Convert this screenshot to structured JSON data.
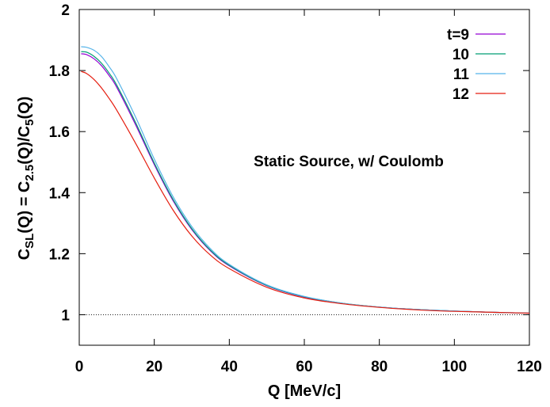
{
  "chart_data": {
    "type": "line",
    "xlabel": "Q [MeV/c]",
    "ylabel": {
      "parts": [
        {
          "text": "C",
          "sub": false
        },
        {
          "text": "SL",
          "sub": true
        },
        {
          "text": "(Q) = C",
          "sub": false
        },
        {
          "text": "2.5",
          "sub": true
        },
        {
          "text": "(Q)/C",
          "sub": false
        },
        {
          "text": "5",
          "sub": true
        },
        {
          "text": "(Q)",
          "sub": false
        }
      ]
    },
    "xlim": [
      0,
      120
    ],
    "ylim": [
      0.9,
      2.0
    ],
    "xticks": [
      0,
      20,
      40,
      60,
      80,
      100,
      120
    ],
    "xtick_labels": [
      "0",
      "20",
      "40",
      "60",
      "80",
      "100",
      "120"
    ],
    "yticks": [
      1,
      1.2,
      1.4,
      1.6,
      1.8,
      2
    ],
    "ytick_labels": [
      "1",
      "1.2",
      "1.4",
      "1.6",
      "1.8",
      "2"
    ],
    "annotation": "Static Source, w/ Coulomb",
    "legend_position": "top-right",
    "reference_line": {
      "y": 1,
      "style": "dotted"
    },
    "series": [
      {
        "name": "t=9",
        "color": "#9400d3",
        "x": [
          0.5,
          2,
          4,
          6,
          8,
          10,
          15,
          20,
          25,
          30,
          35,
          40,
          50,
          60,
          70,
          80,
          90,
          100,
          110,
          120
        ],
        "y": [
          1.855,
          1.852,
          1.838,
          1.815,
          1.783,
          1.745,
          1.623,
          1.492,
          1.374,
          1.279,
          1.209,
          1.16,
          1.095,
          1.058,
          1.037,
          1.025,
          1.017,
          1.012,
          1.008,
          1.005
        ]
      },
      {
        "name": "10",
        "color": "#009e73",
        "x": [
          0.5,
          2,
          4,
          6,
          8,
          10,
          15,
          20,
          25,
          30,
          35,
          40,
          50,
          60,
          70,
          80,
          90,
          100,
          110,
          120
        ],
        "y": [
          1.862,
          1.86,
          1.846,
          1.823,
          1.791,
          1.752,
          1.63,
          1.497,
          1.378,
          1.282,
          1.211,
          1.162,
          1.096,
          1.059,
          1.038,
          1.025,
          1.017,
          1.012,
          1.008,
          1.005
        ]
      },
      {
        "name": "11",
        "color": "#56b4e9",
        "x": [
          0.5,
          2,
          4,
          6,
          8,
          10,
          15,
          20,
          25,
          30,
          35,
          40,
          50,
          60,
          70,
          80,
          90,
          100,
          110,
          120
        ],
        "y": [
          1.878,
          1.876,
          1.866,
          1.845,
          1.812,
          1.773,
          1.648,
          1.51,
          1.387,
          1.289,
          1.216,
          1.165,
          1.098,
          1.06,
          1.038,
          1.025,
          1.017,
          1.012,
          1.008,
          1.005
        ]
      },
      {
        "name": "12",
        "color": "#e51e10",
        "x": [
          0.5,
          2,
          4,
          6,
          8,
          10,
          15,
          20,
          25,
          30,
          35,
          40,
          50,
          60,
          70,
          80,
          90,
          100,
          110,
          120
        ],
        "y": [
          1.797,
          1.79,
          1.77,
          1.742,
          1.708,
          1.67,
          1.562,
          1.448,
          1.343,
          1.258,
          1.195,
          1.151,
          1.09,
          1.055,
          1.036,
          1.024,
          1.016,
          1.011,
          1.008,
          1.005
        ]
      }
    ]
  }
}
